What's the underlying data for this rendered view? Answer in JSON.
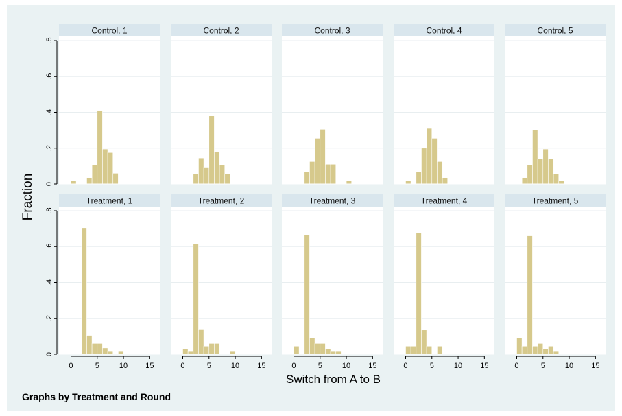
{
  "chart_data": {
    "type": "bar",
    "title": "",
    "xlabel": "Switch from A to B",
    "ylabel": "Fraction",
    "note": "Graphs by Treatment and Round",
    "xlim": [
      -1.5,
      16
    ],
    "ylim": [
      0,
      0.8
    ],
    "xticks": [
      "0",
      "5",
      "10",
      "15"
    ],
    "yticks": [
      "0",
      ".2",
      ".4",
      ".6",
      ".8"
    ],
    "colors": {
      "bar_fill": "#d6c98c",
      "bar_stroke": "#ffffff",
      "panel_header": "#d9e6ed",
      "outer_background": "#eaf2f3",
      "grid": "#e8eef0"
    },
    "panels": [
      {
        "label": "Control, 1",
        "bins": [
          [
            0,
            0.02
          ],
          [
            1,
            0
          ],
          [
            2,
            0
          ],
          [
            3,
            0.035
          ],
          [
            4,
            0.105
          ],
          [
            5,
            0.41
          ],
          [
            6,
            0.195
          ],
          [
            7,
            0.175
          ],
          [
            8,
            0.06
          ]
        ]
      },
      {
        "label": "Control, 2",
        "bins": [
          [
            2,
            0.055
          ],
          [
            3,
            0.145
          ],
          [
            4,
            0.09
          ],
          [
            5,
            0.38
          ],
          [
            6,
            0.18
          ],
          [
            7,
            0.105
          ],
          [
            8,
            0.055
          ]
        ]
      },
      {
        "label": "Control, 3",
        "bins": [
          [
            2,
            0.07
          ],
          [
            3,
            0.125
          ],
          [
            4,
            0.255
          ],
          [
            5,
            0.305
          ],
          [
            6,
            0.11
          ],
          [
            7,
            0.11
          ],
          [
            8,
            0
          ],
          [
            9,
            0
          ],
          [
            10,
            0.02
          ]
        ]
      },
      {
        "label": "Control, 4",
        "bins": [
          [
            0,
            0.02
          ],
          [
            1,
            0
          ],
          [
            2,
            0.07
          ],
          [
            3,
            0.2
          ],
          [
            4,
            0.31
          ],
          [
            5,
            0.255
          ],
          [
            6,
            0.125
          ],
          [
            7,
            0.035
          ]
        ]
      },
      {
        "label": "Control, 5",
        "bins": [
          [
            1,
            0.035
          ],
          [
            2,
            0.105
          ],
          [
            3,
            0.3
          ],
          [
            4,
            0.14
          ],
          [
            5,
            0.195
          ],
          [
            6,
            0.14
          ],
          [
            7,
            0.055
          ],
          [
            8,
            0.02
          ]
        ]
      },
      {
        "label": "Treatment, 1",
        "bins": [
          [
            2,
            0.705
          ],
          [
            3,
            0.105
          ],
          [
            4,
            0.06
          ],
          [
            5,
            0.06
          ],
          [
            6,
            0.035
          ],
          [
            7,
            0.015
          ],
          [
            8,
            0
          ],
          [
            9,
            0.015
          ]
        ]
      },
      {
        "label": "Treatment, 2",
        "bins": [
          [
            0,
            0.03
          ],
          [
            1,
            0.015
          ],
          [
            2,
            0.615
          ],
          [
            3,
            0.14
          ],
          [
            4,
            0.045
          ],
          [
            5,
            0.06
          ],
          [
            6,
            0.06
          ],
          [
            7,
            0
          ],
          [
            8,
            0
          ],
          [
            9,
            0.015
          ]
        ]
      },
      {
        "label": "Treatment, 3",
        "bins": [
          [
            0,
            0.045
          ],
          [
            1,
            0
          ],
          [
            2,
            0.665
          ],
          [
            3,
            0.09
          ],
          [
            4,
            0.06
          ],
          [
            5,
            0.06
          ],
          [
            6,
            0.03
          ],
          [
            7,
            0.015
          ],
          [
            8,
            0.015
          ]
        ]
      },
      {
        "label": "Treatment, 4",
        "bins": [
          [
            0,
            0.045
          ],
          [
            1,
            0.045
          ],
          [
            2,
            0.675
          ],
          [
            3,
            0.135
          ],
          [
            4,
            0.045
          ],
          [
            5,
            0
          ],
          [
            6,
            0.045
          ]
        ]
      },
      {
        "label": "Treatment, 5",
        "bins": [
          [
            0,
            0.09
          ],
          [
            1,
            0.045
          ],
          [
            2,
            0.66
          ],
          [
            3,
            0.045
          ],
          [
            4,
            0.06
          ],
          [
            5,
            0.03
          ],
          [
            6,
            0.045
          ],
          [
            7,
            0.015
          ]
        ]
      }
    ]
  }
}
